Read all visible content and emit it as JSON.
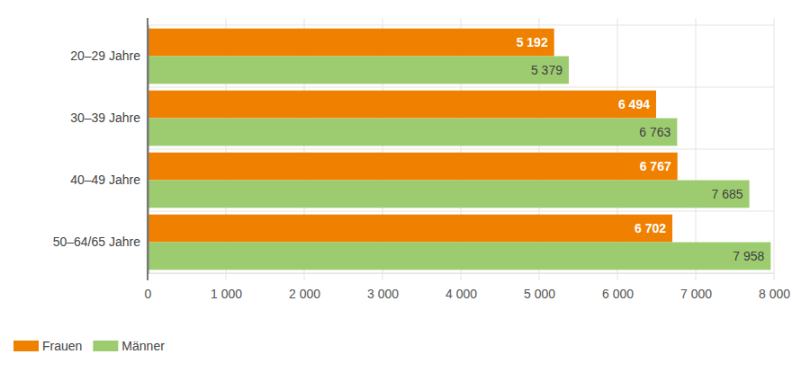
{
  "chart_data": {
    "type": "bar",
    "orientation": "horizontal",
    "categories": [
      "20–29 Jahre",
      "30–39 Jahre",
      "40–49 Jahre",
      "50–64/65 Jahre"
    ],
    "series": [
      {
        "name": "Frauen",
        "color": "#f08100",
        "values": [
          5192,
          6494,
          6767,
          6702
        ],
        "value_labels": [
          "5 192",
          "6 494",
          "6 767",
          "6 702"
        ]
      },
      {
        "name": "Männer",
        "color": "#9dcc70",
        "values": [
          5379,
          6763,
          7685,
          7958
        ],
        "value_labels": [
          "5 379",
          "6 763",
          "7 685",
          "7 958"
        ]
      }
    ],
    "xlim": [
      0,
      8000
    ],
    "xticks": [
      0,
      {
        "value": 1000,
        "label": "1 000"
      },
      {
        "value": 2000,
        "label": "2 000"
      },
      {
        "value": 3000,
        "label": "3 000"
      },
      {
        "value": 4000,
        "label": "4 000"
      },
      {
        "value": 5000,
        "label": "5 000"
      },
      {
        "value": 6000,
        "label": "6 000"
      },
      {
        "value": 7000,
        "label": "7 000"
      },
      {
        "value": 8000,
        "label": "8 000"
      }
    ],
    "grid": true,
    "data_labels": true,
    "legend": "bottom-left"
  }
}
